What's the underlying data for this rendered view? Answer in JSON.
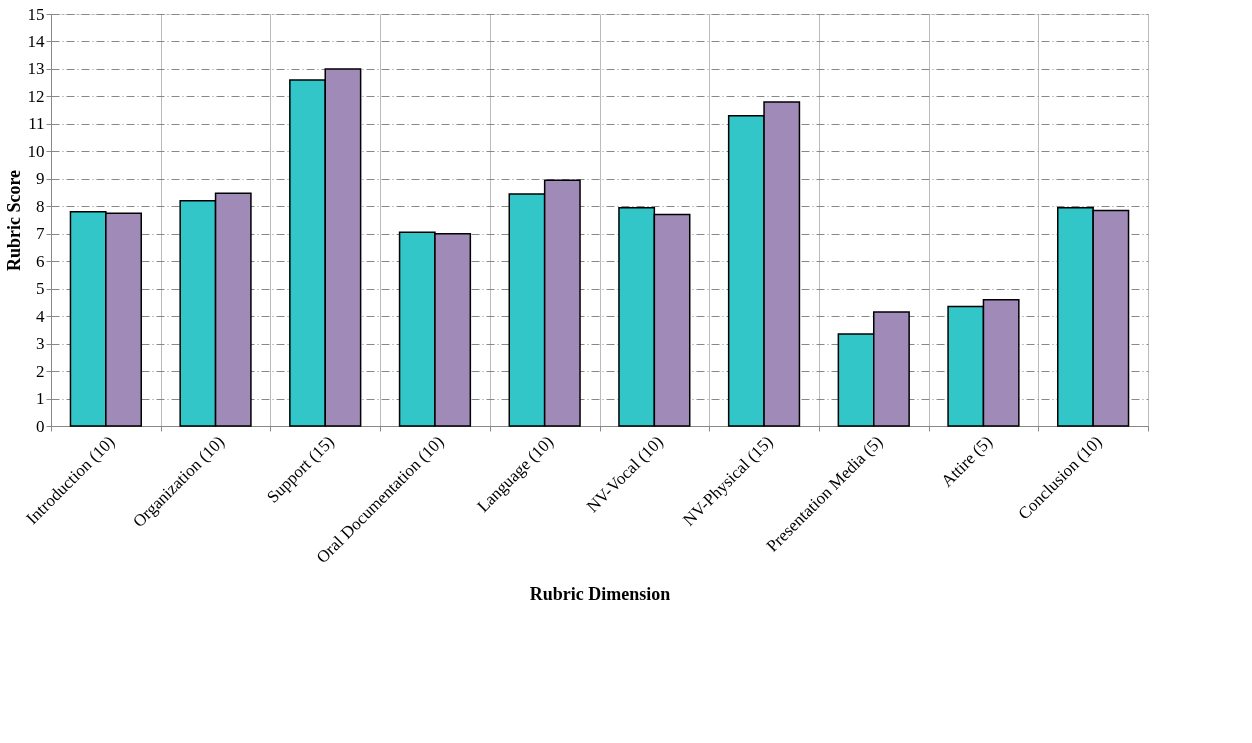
{
  "chart_data": {
    "type": "bar",
    "xlabel": "Rubric Dimension",
    "ylabel": "Rubric Score",
    "categories": [
      "Introduction (10)",
      "Organization (10)",
      "Support (15)",
      "Oral Documentation (10)",
      "Language (10)",
      "NV-Vocal (10)",
      "NV-Physical (15)",
      "Presentation Media (5)",
      "Attire (5)",
      "Conclusion (10)"
    ],
    "series": [
      {
        "color": "#33c6c9",
        "values": [
          7.8,
          8.2,
          12.6,
          7.05,
          8.45,
          7.95,
          11.3,
          3.35,
          4.35,
          7.95
        ]
      },
      {
        "color": "#9f8ab8",
        "values": [
          7.75,
          8.47,
          13.0,
          7.0,
          8.95,
          7.7,
          11.8,
          4.15,
          4.6,
          7.85
        ]
      }
    ],
    "ylim": [
      0,
      15
    ],
    "yticks": [
      0,
      1,
      2,
      3,
      4,
      5,
      6,
      7,
      8,
      9,
      10,
      11,
      12,
      13,
      14,
      15
    ],
    "grid": true,
    "legend": false
  }
}
